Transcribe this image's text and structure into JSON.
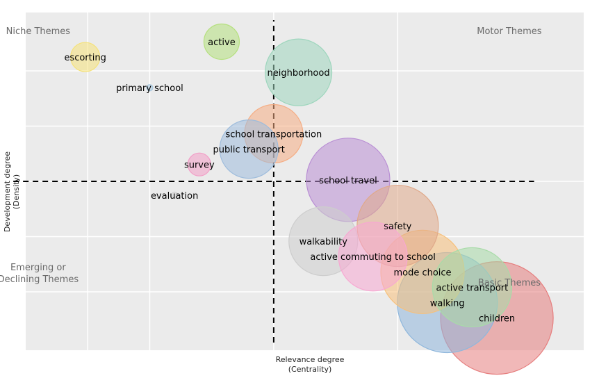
{
  "chart_data": {
    "type": "scatter",
    "title": "",
    "xlabel": [
      "Relevance degree",
      "(Centrality)"
    ],
    "ylabel": [
      "Development degree",
      "(Density)"
    ],
    "xlim": [
      -1.0,
      1.25
    ],
    "ylim": [
      -1.1,
      1.1
    ],
    "grid": true,
    "legend": "none",
    "quadrants": [
      {
        "name": "niche",
        "text": [
          "Niche Themes"
        ],
        "x": -0.95,
        "y": 0.96
      },
      {
        "name": "motor",
        "text": [
          "Motor Themes"
        ],
        "x": 0.95,
        "y": 0.96
      },
      {
        "name": "emerging",
        "text": [
          "Emerging or",
          "Declining Themes"
        ],
        "x": -0.95,
        "y": -0.58
      },
      {
        "name": "basic",
        "text": [
          "Basic Themes"
        ],
        "x": 0.95,
        "y": -0.68
      }
    ],
    "reference_lines": {
      "x": 0.0,
      "y": 0.0,
      "x_span": [
        -1.05,
        1.05
      ],
      "y_span": [
        -1.05,
        1.05
      ]
    },
    "points": [
      {
        "label": "escorting",
        "x": -0.76,
        "y": 0.81,
        "size": 0.14,
        "color": "#f5e27a"
      },
      {
        "label": "active",
        "x": -0.21,
        "y": 0.91,
        "size": 0.17,
        "color": "#b5e07e"
      },
      {
        "label": "primary school",
        "x": -0.5,
        "y": 0.61,
        "size": 0.03,
        "color": "#a8c8e0"
      },
      {
        "label": "neighborhood",
        "x": 0.1,
        "y": 0.71,
        "size": 0.32,
        "color": "#9ed6bd"
      },
      {
        "label": "school transportation",
        "x": 0.0,
        "y": 0.31,
        "size": 0.28,
        "color": "#f5ad84"
      },
      {
        "label": "public transport",
        "x": -0.1,
        "y": 0.21,
        "size": 0.28,
        "color": "#9ebcdc"
      },
      {
        "label": "survey",
        "x": -0.3,
        "y": 0.11,
        "size": 0.11,
        "color": "#f29ec7"
      },
      {
        "label": "evaluation",
        "x": -0.4,
        "y": -0.09,
        "size": 0.03,
        "color": "#d4d4d4"
      },
      {
        "label": "school travel",
        "x": 0.3,
        "y": 0.01,
        "size": 0.4,
        "color": "#b98ed4"
      },
      {
        "label": "safety",
        "x": 0.5,
        "y": -0.29,
        "size": 0.39,
        "color": "#e0a98a"
      },
      {
        "label": "walkability",
        "x": 0.2,
        "y": -0.39,
        "size": 0.33,
        "color": "#cdcdcd"
      },
      {
        "label": "active commuting to school",
        "x": 0.4,
        "y": -0.49,
        "size": 0.33,
        "color": "#f7a8d2"
      },
      {
        "label": "mode choice",
        "x": 0.6,
        "y": -0.59,
        "size": 0.4,
        "color": "#f7c07a"
      },
      {
        "label": "active transport",
        "x": 0.8,
        "y": -0.69,
        "size": 0.38,
        "color": "#a8dba8"
      },
      {
        "label": "walking",
        "x": 0.7,
        "y": -0.79,
        "size": 0.48,
        "color": "#8fb7dc"
      },
      {
        "label": "children",
        "x": 0.9,
        "y": -0.89,
        "size": 0.54,
        "color": "#e67d7d"
      }
    ]
  }
}
